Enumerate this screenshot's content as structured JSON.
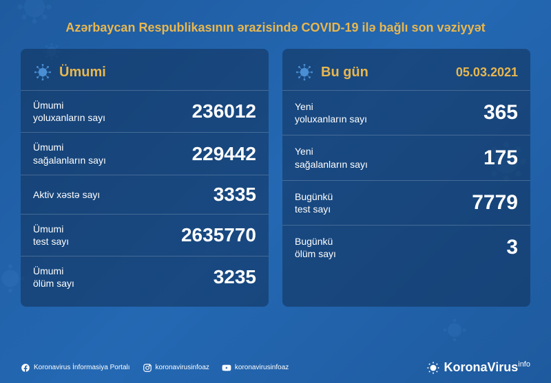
{
  "header": {
    "title": "Azərbaycan Respublikasının ərazisində COVID-19 ilə bağlı son vəziyyət"
  },
  "colors": {
    "accent": "#e8b74f",
    "text": "#ffffff",
    "panel_bg": "rgba(13, 42, 78, 0.5)",
    "border": "rgba(255,255,255,0.2)",
    "virus": "#4a8fd4"
  },
  "left_panel": {
    "title": "Ümumi",
    "stats": [
      {
        "label": "Ümumi\nyoluxanların sayı",
        "value": "236012"
      },
      {
        "label": "Ümumi\nsağalanların sayı",
        "value": "229442"
      },
      {
        "label": "Aktiv xəstə sayı",
        "value": "3335"
      },
      {
        "label": "Ümumi\ntest sayı",
        "value": "2635770"
      },
      {
        "label": "Ümumi\nölüm sayı",
        "value": "3235"
      }
    ]
  },
  "right_panel": {
    "title": "Bu gün",
    "date": "05.03.2021",
    "stats": [
      {
        "label": "Yeni\nyoluxanların sayı",
        "value": "365"
      },
      {
        "label": "Yeni\nsağalanların sayı",
        "value": "175"
      },
      {
        "label": "Bugünkü\ntest sayı",
        "value": "7779"
      },
      {
        "label": "Bugünkü\nölüm sayı",
        "value": "3"
      }
    ]
  },
  "footer": {
    "social": [
      {
        "icon": "facebook",
        "label": "Koronavirus İnformasiya Portalı"
      },
      {
        "icon": "instagram",
        "label": "koronavirusinfoaz"
      },
      {
        "icon": "youtube",
        "label": "koronavirusinfoaz"
      }
    ],
    "brand": {
      "name": "KoronaVirus",
      "suffix": "info"
    }
  }
}
